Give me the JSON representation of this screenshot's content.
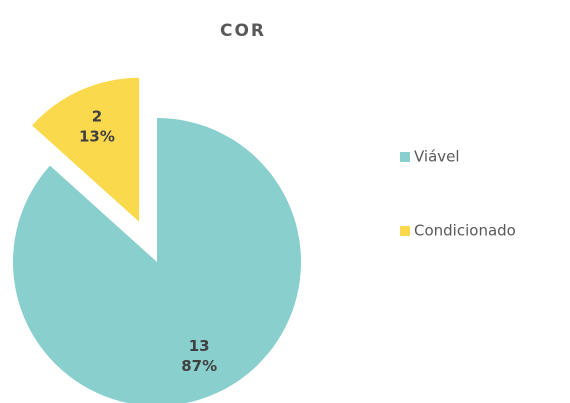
{
  "chart_data": {
    "type": "pie",
    "title": "COR",
    "categories": [
      "Viável",
      "Condicionado"
    ],
    "values": [
      13,
      2
    ],
    "percent_labels": [
      "87%",
      "13%"
    ],
    "colors": [
      "#88cfcd",
      "#fad94d"
    ],
    "exploded": [
      false,
      true
    ],
    "legend": "right"
  }
}
